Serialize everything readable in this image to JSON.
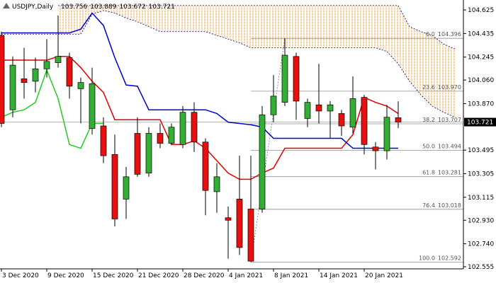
{
  "chart_data": {
    "type": "candlestick",
    "title": "USDJPY,Daily",
    "header_values": [
      103.756,
      103.889,
      103.672,
      103.721
    ],
    "categories": [
      "3 Dec 2020",
      null,
      null,
      null,
      "9 Dec 2020",
      null,
      null,
      null,
      "15 Dec 2020",
      null,
      null,
      null,
      "21 Dec 2020",
      null,
      null,
      null,
      "28 Dec 2020",
      null,
      null,
      null,
      "4 Jan 2021",
      null,
      null,
      null,
      "8 Jan 2021",
      null,
      null,
      null,
      "14 Jan 2021",
      null,
      null,
      null,
      "20 Jan 2021",
      null,
      null,
      null,
      null,
      null,
      null,
      null,
      null
    ],
    "open": [
      104.42,
      103.82,
      104.07,
      104.05,
      104.15,
      104.2,
      104.24,
      103.99,
      103.67,
      103.69,
      103.46,
      103.1,
      103.63,
      103.31,
      103.63,
      103.55,
      103.54,
      103.8,
      103.56,
      103.16,
      102.95,
      103.1,
      103.02,
      103.02,
      103.78,
      103.88,
      104.25,
      103.75,
      103.86,
      103.81,
      103.79,
      103.68,
      103.92,
      103.52,
      103.49,
      103.756,
      null,
      null,
      null,
      null,
      null
    ],
    "high": [
      104.45,
      104.25,
      104.32,
      104.24,
      104.39,
      104.58,
      104.28,
      104.08,
      104.16,
      103.76,
      103.62,
      103.36,
      103.76,
      103.68,
      103.71,
      103.71,
      103.85,
      103.88,
      103.59,
      103.39,
      103.04,
      103.45,
      103.45,
      103.85,
      104.1,
      104.396,
      104.28,
      103.91,
      104.19,
      103.89,
      103.82,
      104.09,
      103.94,
      103.56,
      103.86,
      103.889,
      null,
      null,
      null,
      null,
      null
    ],
    "low": [
      103.68,
      103.76,
      103.91,
      103.96,
      104.08,
      104.16,
      103.91,
      103.71,
      103.62,
      103.39,
      102.88,
      102.94,
      103.28,
      103.28,
      103.51,
      103.54,
      103.51,
      103.48,
      102.97,
      102.99,
      102.62,
      102.65,
      102.592,
      102.99,
      103.72,
      103.85,
      103.74,
      103.68,
      103.71,
      103.59,
      103.61,
      103.63,
      103.46,
      103.34,
      103.42,
      103.672,
      null,
      null,
      null,
      null,
      null
    ],
    "close": [
      103.71,
      104.18,
      104.04,
      104.15,
      104.21,
      104.25,
      104.01,
      104.04,
      104.03,
      103.45,
      102.94,
      103.28,
      103.3,
      103.63,
      103.55,
      103.68,
      103.8,
      103.56,
      103.17,
      103.28,
      102.93,
      102.71,
      102.6,
      103.78,
      103.93,
      104.26,
      103.89,
      103.88,
      103.81,
      103.86,
      103.69,
      103.91,
      103.54,
      103.49,
      103.76,
      103.721,
      null,
      null,
      null,
      null,
      null
    ],
    "up_color": "#33b033",
    "down_color": "#e8100e",
    "lines": [
      {
        "color": "#e00000",
        "values": [
          104.22,
          104.22,
          104.22,
          104.22,
          104.22,
          104.25,
          104.25,
          104.16,
          104.05,
          103.96,
          103.74,
          103.74,
          103.74,
          103.74,
          103.74,
          103.54,
          103.54,
          103.57,
          103.51,
          103.41,
          103.31,
          103.26,
          103.26,
          103.31,
          103.35,
          103.51,
          103.51,
          103.51,
          103.51,
          103.51,
          103.51,
          103.62,
          103.92,
          103.88,
          103.85,
          103.79,
          null,
          null,
          null,
          null,
          null
        ]
      },
      {
        "color": "#0000cc",
        "values": [
          104.44,
          104.44,
          104.44,
          104.44,
          104.44,
          104.44,
          104.44,
          104.47,
          104.6,
          104.5,
          104.24,
          104.02,
          104.01,
          103.82,
          103.82,
          103.82,
          103.82,
          103.82,
          103.82,
          103.79,
          103.72,
          103.71,
          103.7,
          103.68,
          103.59,
          103.59,
          103.59,
          103.59,
          103.59,
          103.59,
          103.59,
          103.51,
          103.51,
          103.51,
          103.51,
          103.51,
          null,
          null,
          null,
          null,
          null
        ]
      },
      {
        "color": "#22cc22",
        "values": [
          103.76,
          103.8,
          103.82,
          103.88,
          104.14,
          103.91,
          103.54,
          103.51,
          103.71,
          103.71,
          null,
          null,
          null,
          null,
          null,
          null,
          null,
          null,
          null,
          null,
          null,
          null,
          null,
          null,
          null,
          null,
          null,
          null,
          null,
          null,
          null,
          null,
          null,
          null,
          null,
          null,
          null,
          null,
          null,
          null,
          null
        ]
      }
    ],
    "cloud": {
      "color": "#f0a040",
      "line_color": "#000080",
      "span_a": [
        104.43,
        104.43,
        104.43,
        104.43,
        104.43,
        104.43,
        104.43,
        104.43,
        104.59,
        104.62,
        104.6,
        104.56,
        104.53,
        104.49,
        104.45,
        104.45,
        104.45,
        104.45,
        104.45,
        104.42,
        104.39,
        104.36,
        104.32,
        104.32,
        104.32,
        104.32,
        104.32,
        104.32,
        104.32,
        104.32,
        104.32,
        104.32,
        104.32,
        104.32,
        104.29,
        104.19,
        104.05,
        103.94,
        103.85,
        103.8,
        103.76
      ],
      "span_b": [
        null,
        null,
        null,
        null,
        null,
        104.66,
        104.66,
        104.66,
        104.66,
        104.66,
        104.66,
        104.66,
        104.66,
        104.66,
        104.66,
        104.66,
        104.66,
        104.66,
        104.66,
        104.66,
        104.66,
        104.66,
        104.66,
        104.66,
        104.66,
        104.66,
        104.66,
        104.66,
        104.66,
        104.66,
        104.66,
        104.66,
        104.66,
        104.66,
        104.66,
        104.66,
        104.49,
        104.45,
        104.42,
        104.35,
        104.31
      ]
    },
    "fibonacci": [
      {
        "ratio": "0.0",
        "price": 104.396
      },
      {
        "ratio": "23.6",
        "price": {
          "value": 103.97,
          "label": "103.970"
        }
      },
      {
        "ratio": "38.2",
        "price": 103.707
      },
      {
        "ratio": "50.0",
        "price": 103.494
      },
      {
        "ratio": "61.8",
        "price": 103.281
      },
      {
        "ratio": "76.4",
        "price": 103.018
      },
      {
        "ratio": "100.0",
        "price": 102.592
      }
    ],
    "last_price": 103.721,
    "ylim": [
      102.538,
      104.705
    ],
    "yticks": [
      104.625,
      104.435,
      104.245,
      {
        "value": 104.06,
        "label": "104.060"
      },
      {
        "value": 103.87,
        "label": "103.870"
      },
      103.495,
      103.305,
      103.115,
      {
        "value": 102.93,
        "label": "102.930"
      },
      {
        "value": 102.74,
        "label": "102.740"
      },
      102.555
    ]
  }
}
